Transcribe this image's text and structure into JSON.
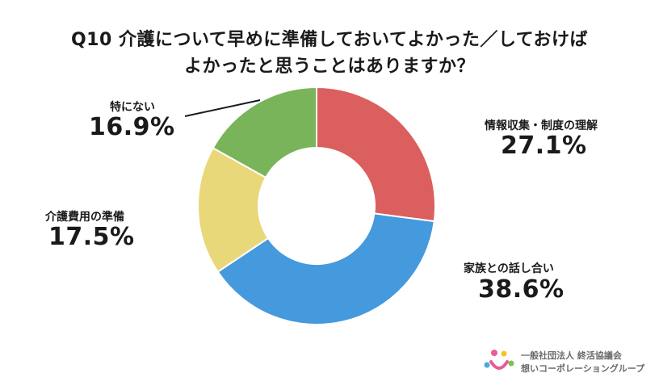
{
  "title": {
    "line1": "Q10 介護について早めに準備しておいてよかった／しておけば",
    "line2": "よかったと思うことはありますか？"
  },
  "chart_data": {
    "type": "pie",
    "title": "Q10 介護について早めに準備しておいてよかった／しておけばよかったと思うことはありますか？",
    "unit": "%",
    "categories": [
      "情報収集・制度の理解",
      "家族との話し合い",
      "介護費用の準備",
      "特にない"
    ],
    "values": [
      27.1,
      38.6,
      17.5,
      16.9
    ],
    "display_values": [
      "27.1%",
      "38.6%",
      "17.5%",
      "16.9%"
    ],
    "colors": [
      "#dc5f5f",
      "#4599dd",
      "#e8d879",
      "#79b45a"
    ],
    "donut": true
  },
  "logo": {
    "line1": "一般社団法人 終活協議会",
    "line2": "想いコーポレーショングループ",
    "colors": [
      "#e85a9a",
      "#f3c321",
      "#48a8e0",
      "#7cc04f"
    ]
  }
}
